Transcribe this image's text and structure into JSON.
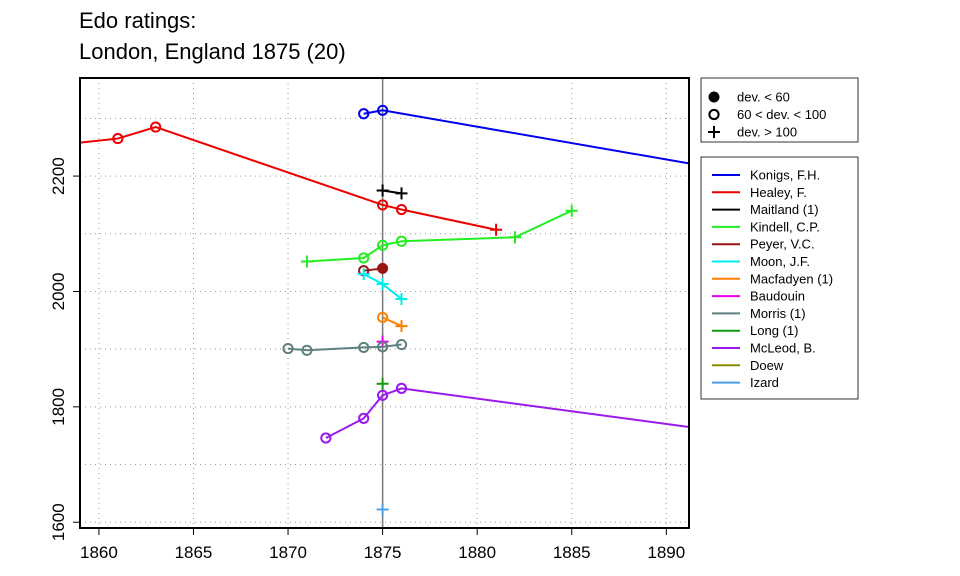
{
  "chart_data": {
    "type": "line",
    "title_line1": "Edo ratings:",
    "title_line2": "London, England 1875 (20)",
    "xlabel": "",
    "ylabel": "",
    "xlim": [
      1859,
      1891.2
    ],
    "ylim": [
      1590,
      2370
    ],
    "x_ticks": [
      1860,
      1865,
      1870,
      1875,
      1880,
      1885,
      1890
    ],
    "y_ticks": [
      1600,
      1800,
      2000,
      2200
    ],
    "grid": true,
    "reference_x": 1875,
    "marker_legend": {
      "placement": "right-top",
      "entries": [
        {
          "marker": "dot",
          "label": "dev. < 60"
        },
        {
          "marker": "circle",
          "label": "60 < dev. < 100"
        },
        {
          "marker": "plus",
          "label": "dev. > 100"
        }
      ]
    },
    "series": [
      {
        "name": "Konigs, F.H.",
        "color": "#0000ee",
        "points": [
          [
            1874,
            2308,
            "circle"
          ],
          [
            1875,
            2314,
            "circle"
          ],
          [
            1891.2,
            2222,
            "none"
          ]
        ]
      },
      {
        "name": "Healey, F.",
        "color": "#ee0000",
        "points": [
          [
            1859,
            2258,
            "none"
          ],
          [
            1861,
            2265,
            "circle"
          ],
          [
            1863,
            2285,
            "circle"
          ],
          [
            1875,
            2150,
            "circle"
          ],
          [
            1876,
            2142,
            "circle"
          ],
          [
            1881,
            2107,
            "plus"
          ]
        ]
      },
      {
        "name": "Maitland (1)",
        "color": "#000000",
        "points": [
          [
            1875,
            2175,
            "plus"
          ],
          [
            1876,
            2170,
            "plus"
          ]
        ]
      },
      {
        "name": "Kindell, C.P.",
        "color": "#22ee22",
        "points": [
          [
            1871,
            2052,
            "plus"
          ],
          [
            1874,
            2058,
            "circle"
          ],
          [
            1875,
            2080,
            "circle"
          ],
          [
            1876,
            2087,
            "circle"
          ],
          [
            1882,
            2094,
            "plus"
          ],
          [
            1885,
            2140,
            "plus"
          ]
        ]
      },
      {
        "name": "Peyer, V.C.",
        "color": "#9a1414",
        "points": [
          [
            1874,
            2036,
            "circle"
          ],
          [
            1875,
            2040,
            "dot"
          ]
        ]
      },
      {
        "name": "Moon, J.F.",
        "color": "#00eeee",
        "points": [
          [
            1874,
            2030,
            "plus"
          ],
          [
            1875,
            2013,
            "plus"
          ],
          [
            1876,
            1987,
            "plus"
          ]
        ]
      },
      {
        "name": "Macfadyen (1)",
        "color": "#ff7f00",
        "points": [
          [
            1875,
            1955,
            "circle"
          ],
          [
            1876,
            1940,
            "plus"
          ]
        ]
      },
      {
        "name": "Baudouin",
        "color": "#ee00ee",
        "points": [
          [
            1875,
            1913,
            "plus"
          ]
        ]
      },
      {
        "name": "Morris (1)",
        "color": "#5f8080",
        "points": [
          [
            1870,
            1901,
            "circle"
          ],
          [
            1871,
            1898,
            "circle"
          ],
          [
            1874,
            1903,
            "circle"
          ],
          [
            1875,
            1904,
            "circle"
          ],
          [
            1876,
            1908,
            "circle"
          ]
        ]
      },
      {
        "name": "Long (1)",
        "color": "#119911",
        "points": [
          [
            1875,
            1840,
            "plus"
          ]
        ]
      },
      {
        "name": "McLeod, B.",
        "color": "#9a1aee",
        "points": [
          [
            1872,
            1746,
            "circle"
          ],
          [
            1874,
            1780,
            "circle"
          ],
          [
            1875,
            1820,
            "circle"
          ],
          [
            1876,
            1832,
            "circle"
          ],
          [
            1891.2,
            1765,
            "none"
          ]
        ]
      },
      {
        "name": "Doew",
        "color": "#8b8b00",
        "points": []
      },
      {
        "name": "Izard",
        "color": "#4c9fe6",
        "points": [
          [
            1875,
            1622,
            "plus"
          ]
        ]
      }
    ]
  }
}
